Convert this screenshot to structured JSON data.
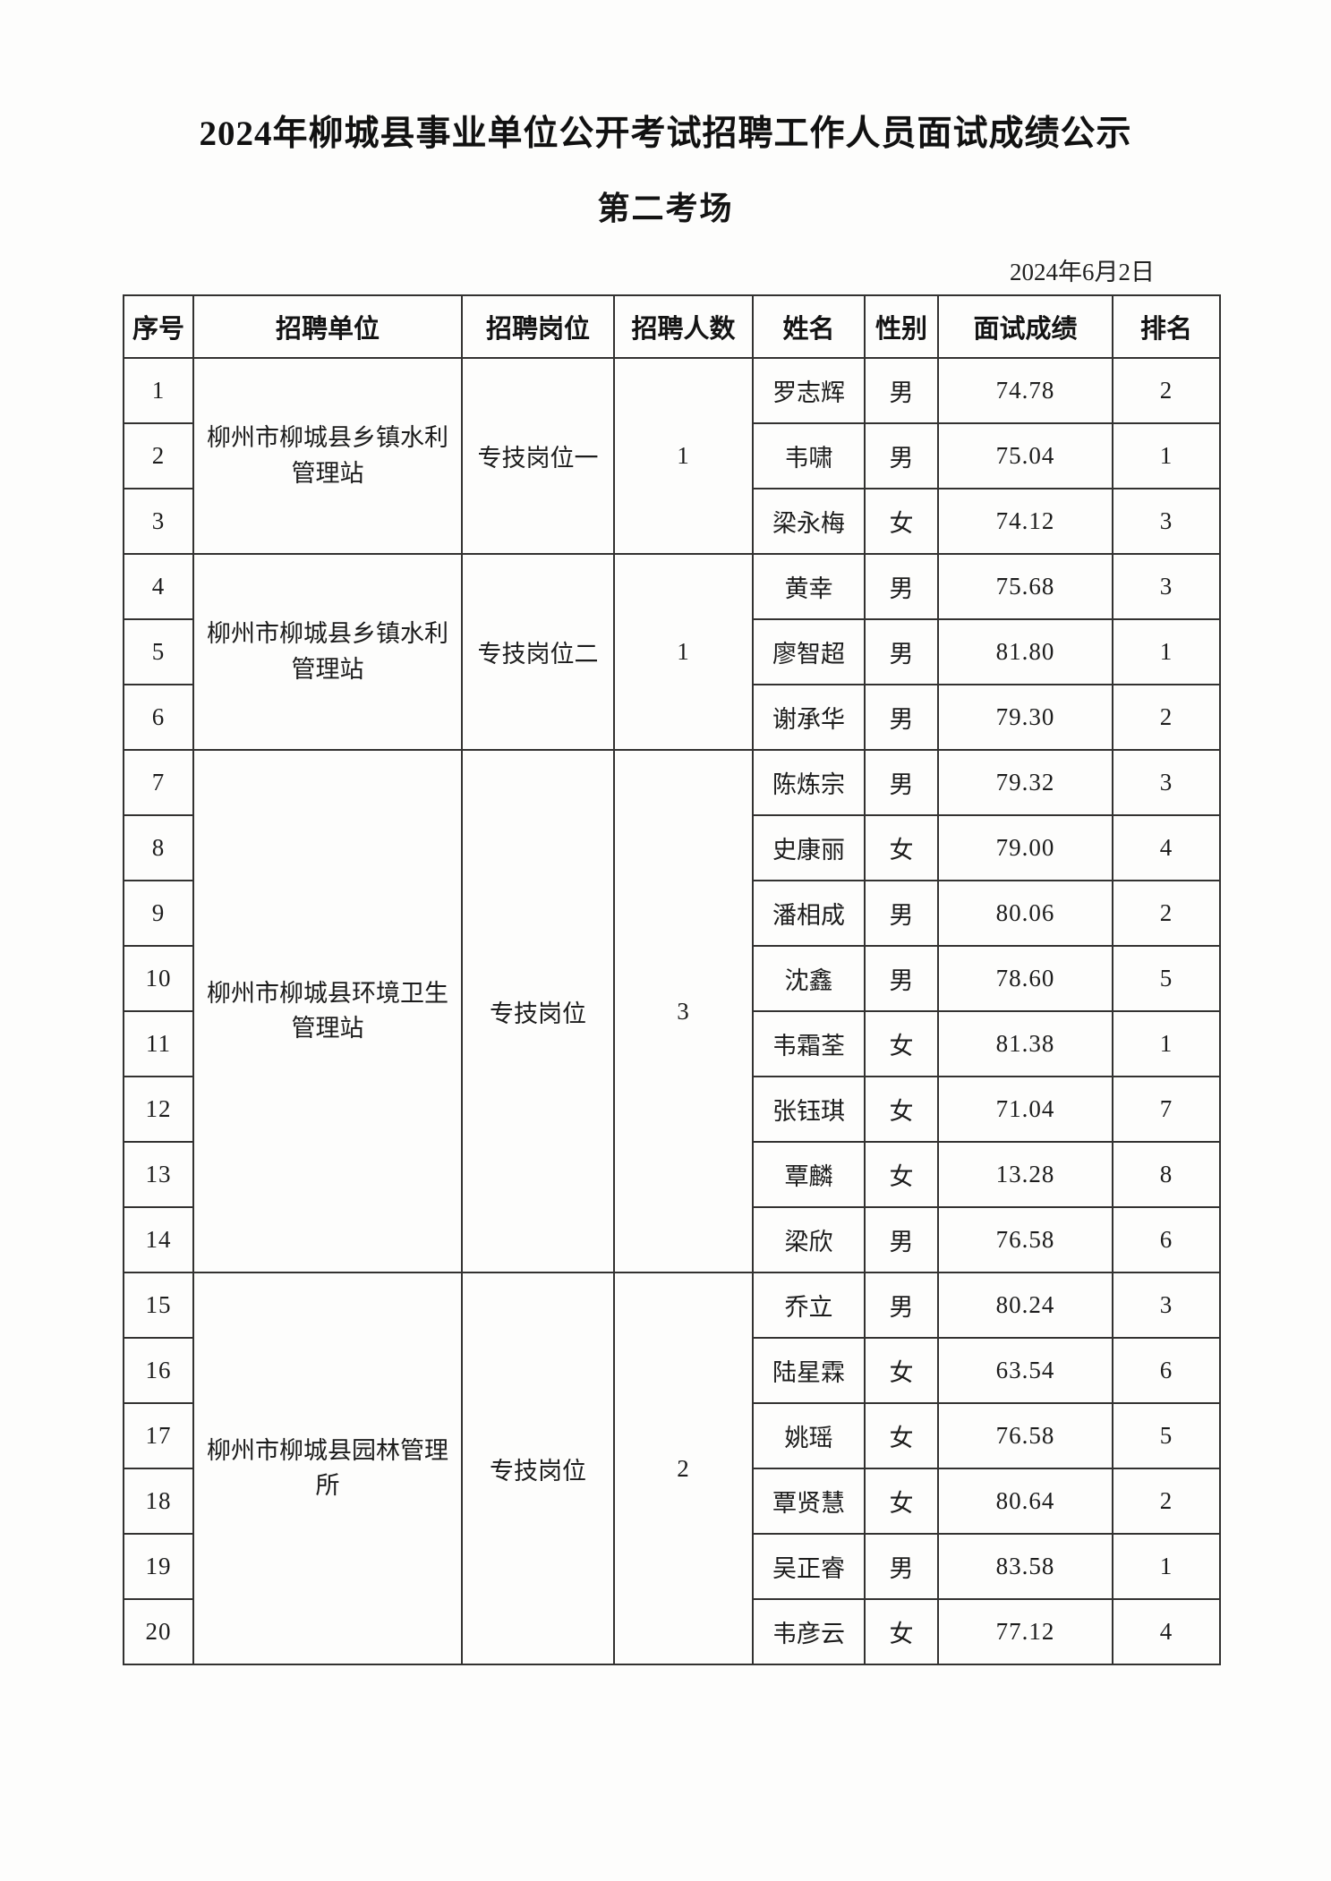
{
  "page": {
    "title": "2024年柳城县事业单位公开考试招聘工作人员面试成绩公示",
    "subtitle": "第二考场",
    "date": "2024年6月2日"
  },
  "table": {
    "headers": [
      "序号",
      "招聘单位",
      "招聘岗位",
      "招聘人数",
      "姓名",
      "性别",
      "面试成绩",
      "排名"
    ],
    "header_keys": [
      "no",
      "unit",
      "position",
      "count",
      "name",
      "gender",
      "score",
      "rank"
    ],
    "groups": [
      {
        "unit": "柳州市柳城县乡镇水利管理站",
        "position": "专技岗位一",
        "recruit_count": "1",
        "rows": [
          {
            "no": "1",
            "name": "罗志辉",
            "gender": "男",
            "score": "74.78",
            "rank": "2"
          },
          {
            "no": "2",
            "name": "韦啸",
            "gender": "男",
            "score": "75.04",
            "rank": "1"
          },
          {
            "no": "3",
            "name": "梁永梅",
            "gender": "女",
            "score": "74.12",
            "rank": "3"
          }
        ]
      },
      {
        "unit": "柳州市柳城县乡镇水利管理站",
        "position": "专技岗位二",
        "recruit_count": "1",
        "rows": [
          {
            "no": "4",
            "name": "黄幸",
            "gender": "男",
            "score": "75.68",
            "rank": "3"
          },
          {
            "no": "5",
            "name": "廖智超",
            "gender": "男",
            "score": "81.80",
            "rank": "1"
          },
          {
            "no": "6",
            "name": "谢承华",
            "gender": "男",
            "score": "79.30",
            "rank": "2"
          }
        ]
      },
      {
        "unit": "柳州市柳城县环境卫生管理站",
        "position": "专技岗位",
        "recruit_count": "3",
        "rows": [
          {
            "no": "7",
            "name": "陈炼宗",
            "gender": "男",
            "score": "79.32",
            "rank": "3"
          },
          {
            "no": "8",
            "name": "史康丽",
            "gender": "女",
            "score": "79.00",
            "rank": "4"
          },
          {
            "no": "9",
            "name": "潘相成",
            "gender": "男",
            "score": "80.06",
            "rank": "2"
          },
          {
            "no": "10",
            "name": "沈鑫",
            "gender": "男",
            "score": "78.60",
            "rank": "5"
          },
          {
            "no": "11",
            "name": "韦霜荃",
            "gender": "女",
            "score": "81.38",
            "rank": "1"
          },
          {
            "no": "12",
            "name": "张钰琪",
            "gender": "女",
            "score": "71.04",
            "rank": "7"
          },
          {
            "no": "13",
            "name": "覃麟",
            "gender": "女",
            "score": "13.28",
            "rank": "8"
          },
          {
            "no": "14",
            "name": "梁欣",
            "gender": "男",
            "score": "76.58",
            "rank": "6"
          }
        ]
      },
      {
        "unit": "柳州市柳城县园林管理所",
        "position": "专技岗位",
        "recruit_count": "2",
        "rows": [
          {
            "no": "15",
            "name": "乔立",
            "gender": "男",
            "score": "80.24",
            "rank": "3"
          },
          {
            "no": "16",
            "name": "陆星霖",
            "gender": "女",
            "score": "63.54",
            "rank": "6"
          },
          {
            "no": "17",
            "name": "姚瑶",
            "gender": "女",
            "score": "76.58",
            "rank": "5"
          },
          {
            "no": "18",
            "name": "覃贤慧",
            "gender": "女",
            "score": "80.64",
            "rank": "2"
          },
          {
            "no": "19",
            "name": "吴正睿",
            "gender": "男",
            "score": "83.58",
            "rank": "1"
          },
          {
            "no": "20",
            "name": "韦彦云",
            "gender": "女",
            "score": "77.12",
            "rank": "4"
          }
        ]
      }
    ]
  },
  "colors": {
    "paper": "#fdfdfc",
    "text": "#1b1b1b",
    "border": "#333231"
  }
}
